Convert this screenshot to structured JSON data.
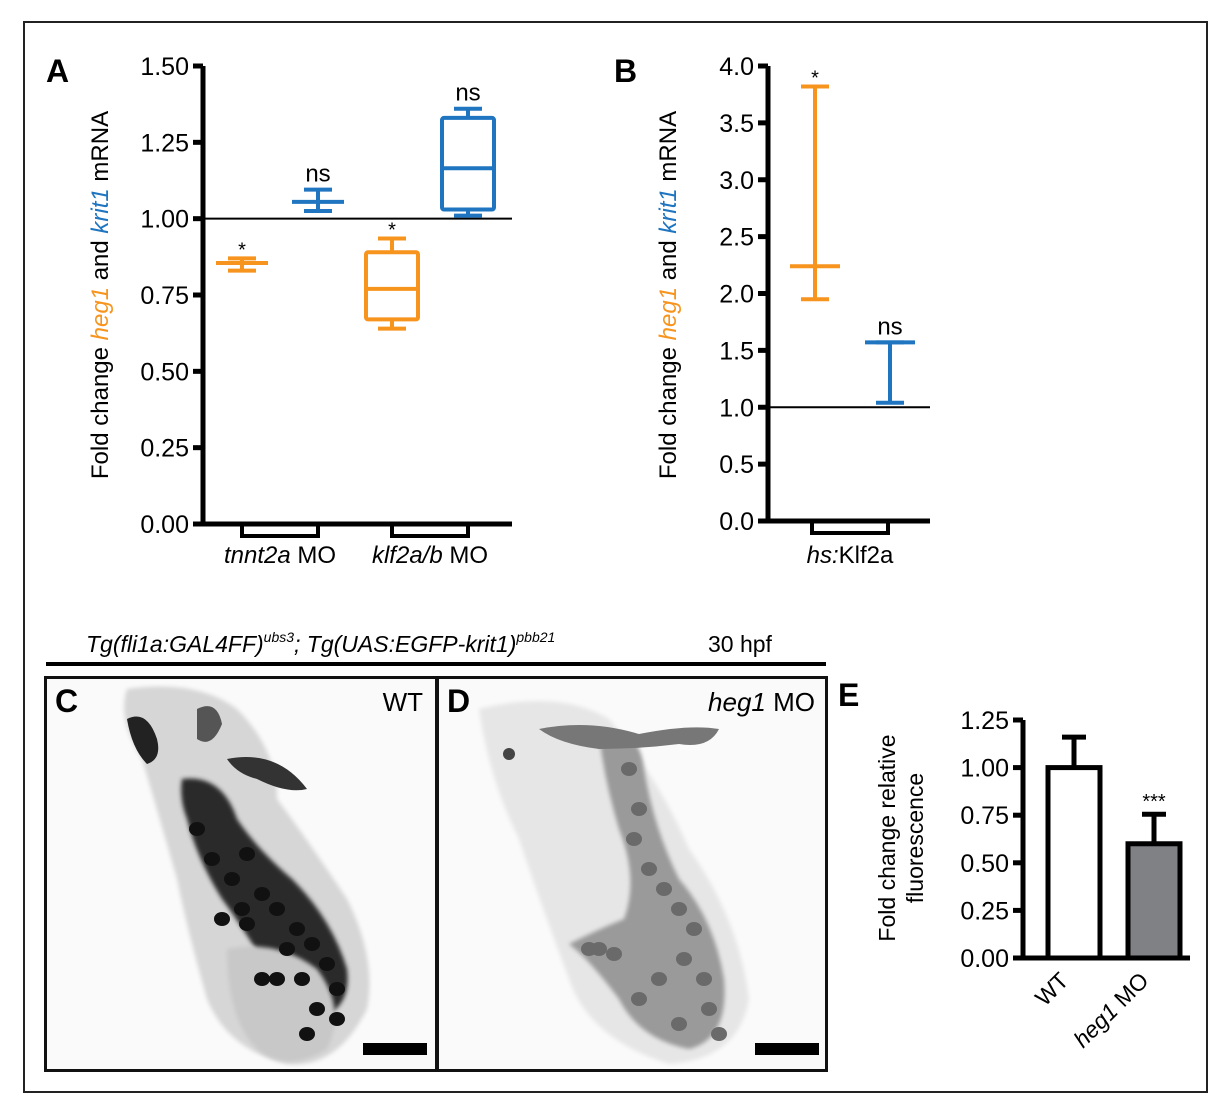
{
  "colors": {
    "heg1": "#f7941d",
    "krit1": "#1f75c0",
    "axis": "#000000",
    "bar_wt": "#ffffff",
    "bar_heg1mo": "#808184"
  },
  "panel_labels": {
    "A": "A",
    "B": "B",
    "C": "C",
    "D": "D",
    "E": "E"
  },
  "transgene_header": {
    "part1": "Tg(fli1a:GAL4FF)",
    "sup1": "ubs3",
    "part2": "; Tg(UAS:EGFP-krit1)",
    "sup2": "pbb21",
    "stage": "30 hpf"
  },
  "micrographs": {
    "C": {
      "condition": "WT"
    },
    "D": {
      "condition_gene": "heg1",
      "condition_suffix": " MO"
    }
  },
  "chart_data": [
    {
      "id": "A",
      "type": "box",
      "title": "",
      "ylabel": {
        "prefix": "Fold change ",
        "gene1": "heg1",
        "mid": " and ",
        "gene2": "krit1",
        "suffix": " mRNA"
      },
      "ylim": [
        0,
        1.5
      ],
      "yticks": [
        0,
        0.25,
        0.5,
        0.75,
        1.0,
        1.25,
        1.5
      ],
      "ytick_labels": [
        "0.00",
        "0.25",
        "0.50",
        "0.75",
        "1.00",
        "1.25",
        "1.50"
      ],
      "reference_line": 1.0,
      "groups": [
        {
          "label_italic": "tnnt2a",
          "label_plain": " MO"
        },
        {
          "label_italic": "klf2a/b",
          "label_plain": " MO"
        }
      ],
      "series": [
        {
          "group": 0,
          "gene": "heg1",
          "min": 0.83,
          "q1": 0.855,
          "median": 0.855,
          "q3": 0.855,
          "max": 0.87,
          "annotation": "*"
        },
        {
          "group": 0,
          "gene": "krit1",
          "min": 1.025,
          "q1": 1.055,
          "median": 1.055,
          "q3": 1.055,
          "max": 1.095,
          "annotation": "ns"
        },
        {
          "group": 1,
          "gene": "heg1",
          "min": 0.64,
          "q1": 0.67,
          "median": 0.77,
          "q3": 0.89,
          "max": 0.935,
          "annotation": "*"
        },
        {
          "group": 1,
          "gene": "krit1",
          "min": 1.01,
          "q1": 1.03,
          "median": 1.165,
          "q3": 1.33,
          "max": 1.36,
          "annotation": "ns"
        }
      ]
    },
    {
      "id": "B",
      "type": "box",
      "title": "",
      "ylabel": {
        "prefix": "Fold change ",
        "gene1": "heg1",
        "mid": " and ",
        "gene2": "krit1",
        "suffix": " mRNA"
      },
      "ylim": [
        0,
        4.0
      ],
      "yticks": [
        0,
        0.5,
        1.0,
        1.5,
        2.0,
        2.5,
        3.0,
        3.5,
        4.0
      ],
      "ytick_labels": [
        "0.0",
        "0.5",
        "1.0",
        "1.5",
        "2.0",
        "2.5",
        "3.0",
        "3.5",
        "4.0"
      ],
      "reference_line": 1.0,
      "groups": [
        {
          "label_italic": "hs:",
          "label_plain": "Klf2a"
        }
      ],
      "series": [
        {
          "group": 0,
          "gene": "heg1",
          "min": 1.95,
          "q1": 2.24,
          "median": 2.24,
          "q3": 2.24,
          "max": 3.82,
          "annotation": "*"
        },
        {
          "group": 0,
          "gene": "krit1",
          "min": 1.04,
          "q1": 1.57,
          "median": 1.57,
          "q3": 1.57,
          "max": 1.57,
          "annotation": "ns"
        }
      ]
    },
    {
      "id": "E",
      "type": "bar",
      "title": "",
      "ylabel_line1": "Fold change relative",
      "ylabel_line2": "fluorescence",
      "ylim": [
        0,
        1.25
      ],
      "yticks": [
        0,
        0.25,
        0.5,
        0.75,
        1.0,
        1.25
      ],
      "ytick_labels": [
        "0.00",
        "0.25",
        "0.50",
        "0.75",
        "1.00",
        "1.25"
      ],
      "categories": [
        {
          "label": "WT",
          "label_italic": "",
          "label_plain": "WT"
        },
        {
          "label": "heg1 MO",
          "label_italic": "heg1",
          "label_plain": " MO"
        }
      ],
      "values": [
        1.0,
        0.6
      ],
      "errors": [
        0.16,
        0.155
      ],
      "annotations": [
        "",
        "***"
      ]
    }
  ]
}
